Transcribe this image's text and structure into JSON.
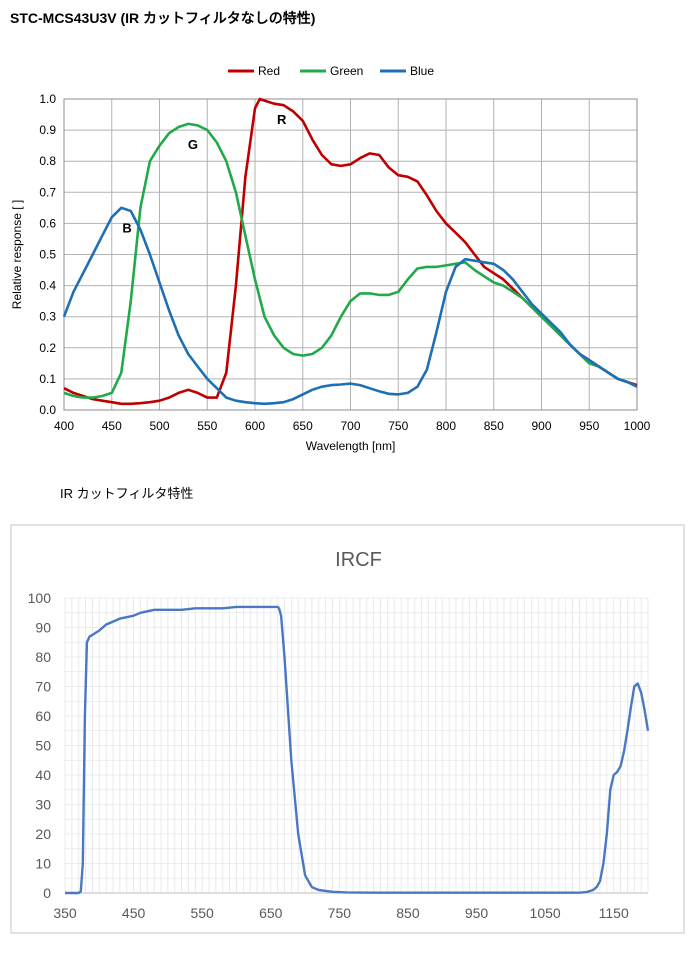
{
  "header": {
    "title": "STC-MCS43U3V (IR カットフィルタなしの特性)",
    "subtitle": "IR カットフィルタ特性"
  },
  "chart_data": [
    {
      "type": "line",
      "title": "",
      "xlabel": "Wavelength [nm]",
      "ylabel": "Relative response [ ]",
      "xlim": [
        400,
        1000
      ],
      "ylim": [
        0,
        1.0
      ],
      "xticks": [
        400,
        450,
        500,
        550,
        600,
        650,
        700,
        750,
        800,
        850,
        900,
        950,
        1000
      ],
      "yticks": [
        "0.0",
        "0.1",
        "0.2",
        "0.3",
        "0.4",
        "0.5",
        "0.6",
        "0.7",
        "0.8",
        "0.9",
        "1.0"
      ],
      "grid": true,
      "legend": "top-center",
      "annotations": [
        {
          "text": "R",
          "x": 628,
          "y": 0.92
        },
        {
          "text": "G",
          "x": 535,
          "y": 0.84
        },
        {
          "text": "B",
          "x": 466,
          "y": 0.57
        }
      ],
      "series": [
        {
          "name": "Red",
          "color": "#c00000",
          "x": [
            400,
            410,
            420,
            430,
            440,
            450,
            460,
            470,
            480,
            490,
            500,
            510,
            520,
            530,
            540,
            550,
            560,
            570,
            580,
            590,
            600,
            605,
            610,
            620,
            630,
            640,
            650,
            660,
            670,
            680,
            690,
            700,
            710,
            720,
            730,
            740,
            750,
            760,
            770,
            780,
            790,
            800,
            810,
            820,
            830,
            840,
            850,
            860,
            870,
            880,
            890,
            900,
            910,
            920,
            930,
            940,
            950,
            960,
            970,
            980,
            990,
            1000
          ],
          "values": [
            0.07,
            0.055,
            0.045,
            0.035,
            0.03,
            0.025,
            0.02,
            0.02,
            0.022,
            0.025,
            0.03,
            0.04,
            0.055,
            0.065,
            0.055,
            0.04,
            0.04,
            0.12,
            0.4,
            0.75,
            0.97,
            1.0,
            0.995,
            0.985,
            0.98,
            0.96,
            0.93,
            0.87,
            0.82,
            0.79,
            0.785,
            0.79,
            0.81,
            0.825,
            0.82,
            0.78,
            0.755,
            0.75,
            0.735,
            0.69,
            0.64,
            0.6,
            0.57,
            0.54,
            0.5,
            0.46,
            0.44,
            0.42,
            0.39,
            0.36,
            0.33,
            0.3,
            0.27,
            0.24,
            0.21,
            0.18,
            0.16,
            0.14,
            0.12,
            0.1,
            0.09,
            0.08
          ]
        },
        {
          "name": "Green",
          "color": "#22a94a",
          "x": [
            400,
            410,
            420,
            430,
            440,
            450,
            460,
            470,
            480,
            490,
            500,
            510,
            520,
            530,
            540,
            550,
            560,
            570,
            580,
            590,
            600,
            610,
            620,
            630,
            640,
            650,
            660,
            670,
            680,
            690,
            700,
            710,
            720,
            730,
            740,
            750,
            760,
            770,
            780,
            790,
            800,
            810,
            820,
            830,
            840,
            850,
            860,
            870,
            880,
            890,
            900,
            910,
            920,
            930,
            940,
            950,
            960,
            970,
            980,
            990,
            1000
          ],
          "values": [
            0.055,
            0.045,
            0.04,
            0.04,
            0.045,
            0.055,
            0.12,
            0.35,
            0.65,
            0.8,
            0.85,
            0.89,
            0.91,
            0.92,
            0.915,
            0.9,
            0.86,
            0.8,
            0.7,
            0.56,
            0.42,
            0.3,
            0.24,
            0.2,
            0.18,
            0.175,
            0.18,
            0.2,
            0.24,
            0.3,
            0.35,
            0.375,
            0.375,
            0.37,
            0.37,
            0.38,
            0.42,
            0.455,
            0.46,
            0.46,
            0.465,
            0.47,
            0.475,
            0.45,
            0.43,
            0.41,
            0.4,
            0.38,
            0.36,
            0.33,
            0.3,
            0.27,
            0.24,
            0.21,
            0.18,
            0.15,
            0.14,
            0.12,
            0.1,
            0.09,
            0.075
          ]
        },
        {
          "name": "Blue",
          "color": "#1f6fb4",
          "x": [
            400,
            410,
            420,
            430,
            440,
            450,
            460,
            470,
            480,
            490,
            500,
            510,
            520,
            530,
            540,
            550,
            560,
            570,
            580,
            590,
            600,
            610,
            620,
            630,
            640,
            650,
            660,
            670,
            680,
            690,
            700,
            710,
            720,
            730,
            740,
            750,
            760,
            770,
            780,
            790,
            800,
            810,
            820,
            830,
            840,
            850,
            860,
            870,
            880,
            890,
            900,
            910,
            920,
            930,
            940,
            950,
            960,
            970,
            980,
            990,
            1000
          ],
          "values": [
            0.3,
            0.38,
            0.44,
            0.5,
            0.56,
            0.62,
            0.65,
            0.64,
            0.58,
            0.5,
            0.41,
            0.32,
            0.24,
            0.18,
            0.14,
            0.1,
            0.07,
            0.04,
            0.03,
            0.025,
            0.022,
            0.02,
            0.022,
            0.025,
            0.035,
            0.05,
            0.065,
            0.075,
            0.08,
            0.082,
            0.085,
            0.08,
            0.07,
            0.06,
            0.052,
            0.05,
            0.055,
            0.075,
            0.13,
            0.25,
            0.38,
            0.46,
            0.485,
            0.48,
            0.475,
            0.47,
            0.45,
            0.42,
            0.38,
            0.34,
            0.31,
            0.28,
            0.25,
            0.21,
            0.18,
            0.16,
            0.14,
            0.12,
            0.1,
            0.09,
            0.075
          ]
        }
      ]
    },
    {
      "type": "line",
      "title": "IRCF",
      "xlabel": "",
      "ylabel": "",
      "xlim": [
        350,
        1200
      ],
      "ylim": [
        0,
        100
      ],
      "xticks": [
        350,
        450,
        550,
        650,
        750,
        850,
        950,
        1050,
        1150
      ],
      "yticks": [
        0,
        10,
        20,
        30,
        40,
        50,
        60,
        70,
        80,
        90,
        100
      ],
      "grid": true,
      "series": [
        {
          "name": "",
          "color": "#4a78c2",
          "x": [
            350,
            370,
            373,
            376,
            379,
            382,
            386,
            390,
            400,
            410,
            420,
            430,
            440,
            450,
            460,
            470,
            480,
            500,
            520,
            540,
            560,
            580,
            600,
            620,
            640,
            655,
            660,
            662,
            665,
            670,
            680,
            690,
            700,
            710,
            720,
            740,
            760,
            800,
            900,
            1000,
            1100,
            1110,
            1120,
            1125,
            1130,
            1135,
            1140,
            1145,
            1150,
            1155,
            1160,
            1165,
            1170,
            1175,
            1180,
            1185,
            1190,
            1195,
            1200
          ],
          "values": [
            0,
            0,
            0.5,
            10,
            60,
            85,
            87,
            87.5,
            89,
            91,
            92,
            93,
            93.5,
            94,
            95,
            95.5,
            96,
            96,
            96,
            96.5,
            96.5,
            96.5,
            97,
            97,
            97,
            97,
            97,
            96.5,
            94,
            80,
            45,
            20,
            6,
            2,
            1,
            0.4,
            0.2,
            0.1,
            0.1,
            0.1,
            0.1,
            0.3,
            1,
            2,
            4,
            10,
            20,
            35,
            40,
            41,
            43,
            48,
            55,
            63,
            70,
            71,
            68,
            62,
            55
          ]
        }
      ]
    }
  ]
}
